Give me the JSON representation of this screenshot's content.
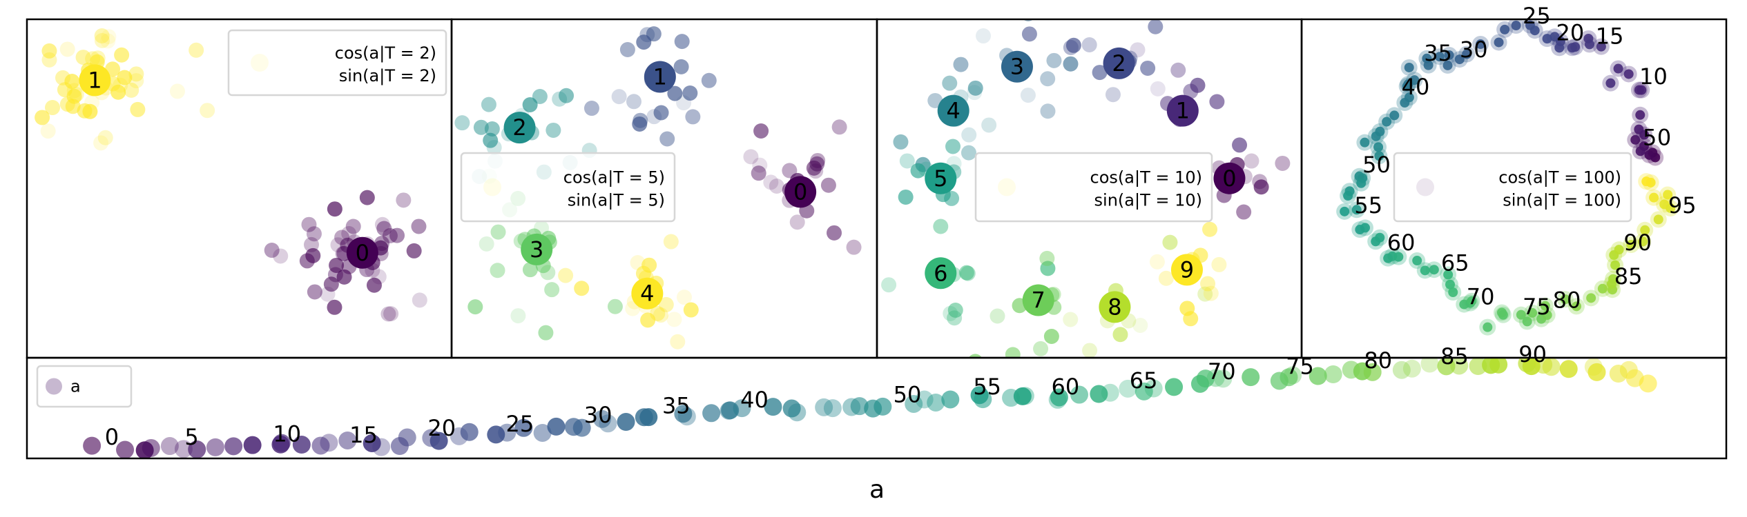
{
  "chart_data": [
    {
      "type": "scatter",
      "panel": "T2",
      "colormap": "viridis",
      "legend": {
        "lines": [
          "cos(a|T = 2)",
          "sin(a|T = 2)"
        ],
        "placement": "upper right"
      },
      "xlim": [
        0,
        100
      ],
      "ylim": [
        0,
        100
      ],
      "clusters": [
        {
          "label": "0",
          "x": 79,
          "y": 31
        },
        {
          "label": "1",
          "x": 16,
          "y": 82
        }
      ]
    },
    {
      "type": "scatter",
      "panel": "T5",
      "colormap": "viridis",
      "legend": {
        "lines": [
          "cos(a|T = 5)",
          "sin(a|T = 5)"
        ],
        "placement": "center left"
      },
      "xlim": [
        0,
        100
      ],
      "ylim": [
        0,
        100
      ],
      "clusters": [
        {
          "label": "0",
          "x": 82,
          "y": 49
        },
        {
          "label": "1",
          "x": 49,
          "y": 83
        },
        {
          "label": "2",
          "x": 16,
          "y": 68
        },
        {
          "label": "3",
          "x": 20,
          "y": 32
        },
        {
          "label": "4",
          "x": 46,
          "y": 19
        }
      ]
    },
    {
      "type": "scatter",
      "panel": "T10",
      "colormap": "viridis",
      "legend": {
        "lines": [
          "cos(a|T = 10)",
          "sin(a|T = 10)"
        ],
        "placement": "center"
      },
      "xlim": [
        0,
        100
      ],
      "ylim": [
        0,
        100
      ],
      "clusters": [
        {
          "label": "0",
          "x": 83,
          "y": 53
        },
        {
          "label": "1",
          "x": 72,
          "y": 73
        },
        {
          "label": "2",
          "x": 57,
          "y": 87
        },
        {
          "label": "3",
          "x": 33,
          "y": 86
        },
        {
          "label": "4",
          "x": 18,
          "y": 73
        },
        {
          "label": "5",
          "x": 15,
          "y": 53
        },
        {
          "label": "6",
          "x": 15,
          "y": 25
        },
        {
          "label": "7",
          "x": 38,
          "y": 17
        },
        {
          "label": "8",
          "x": 56,
          "y": 15
        },
        {
          "label": "9",
          "x": 73,
          "y": 26
        }
      ]
    },
    {
      "type": "scatter",
      "panel": "T100",
      "colormap": "viridis",
      "legend": {
        "lines": [
          "cos(a|T = 100)",
          "sin(a|T = 100)"
        ],
        "placement": "center right"
      },
      "xlim": [
        0,
        100
      ],
      "ylim": [
        0,
        100
      ],
      "anchors": [
        {
          "i": 0,
          "x": 83.4,
          "y": 62,
          "label": "0"
        },
        {
          "i": 5,
          "x": 80,
          "y": 62,
          "label": "5"
        },
        {
          "i": 10,
          "x": 79.2,
          "y": 80,
          "label": "10"
        },
        {
          "i": 15,
          "x": 68.9,
          "y": 92,
          "label": "15"
        },
        {
          "i": 20,
          "x": 59.6,
          "y": 93,
          "label": "20"
        },
        {
          "i": 25,
          "x": 51.7,
          "y": 98,
          "label": "25"
        },
        {
          "i": 30,
          "x": 36.9,
          "y": 88,
          "label": "30"
        },
        {
          "i": 35,
          "x": 28.5,
          "y": 87,
          "label": "35"
        },
        {
          "i": 40,
          "x": 23.2,
          "y": 77,
          "label": "40"
        },
        {
          "i": 45,
          "x": 18.5,
          "y": 66,
          "label": ""
        },
        {
          "i": 50,
          "x": 14,
          "y": 54,
          "label": "50"
        },
        {
          "i": 55,
          "x": 12.1,
          "y": 42,
          "label": "55"
        },
        {
          "i": 60,
          "x": 19.8,
          "y": 31,
          "label": "60"
        },
        {
          "i": 65,
          "x": 32.5,
          "y": 25,
          "label": "65"
        },
        {
          "i": 70,
          "x": 38.5,
          "y": 15,
          "label": "70"
        },
        {
          "i": 75,
          "x": 51.7,
          "y": 12,
          "label": "75"
        },
        {
          "i": 80,
          "x": 58.8,
          "y": 14,
          "label": "80"
        },
        {
          "i": 85,
          "x": 73.3,
          "y": 21,
          "label": "85"
        },
        {
          "i": 90,
          "x": 75.5,
          "y": 31,
          "label": "90"
        },
        {
          "i": 95,
          "x": 86,
          "y": 42,
          "label": "95"
        },
        {
          "i": 100,
          "x": 81,
          "y": 53,
          "label": ""
        }
      ]
    },
    {
      "type": "scatter",
      "panel": "a",
      "colormap": "viridis",
      "xlabel": "a",
      "legend": {
        "lines": [
          "a"
        ],
        "placement": "upper left"
      },
      "xlim": [
        0,
        100
      ],
      "ylim": [
        0,
        100
      ],
      "anchors": [
        {
          "i": 0,
          "x": 4.5,
          "y": 11,
          "label": "0"
        },
        {
          "i": 5,
          "x": 9.2,
          "y": 11,
          "label": "5"
        },
        {
          "i": 10,
          "x": 14.4,
          "y": 14,
          "label": "10"
        },
        {
          "i": 15,
          "x": 18.9,
          "y": 13,
          "label": "15"
        },
        {
          "i": 20,
          "x": 23.5,
          "y": 20,
          "label": "20"
        },
        {
          "i": 25,
          "x": 28.1,
          "y": 24,
          "label": "25"
        },
        {
          "i": 30,
          "x": 32.7,
          "y": 33,
          "label": "30"
        },
        {
          "i": 35,
          "x": 37.3,
          "y": 42,
          "label": "35"
        },
        {
          "i": 40,
          "x": 41.9,
          "y": 48,
          "label": "40"
        },
        {
          "i": 45,
          "x": 46.5,
          "y": 50,
          "label": ""
        },
        {
          "i": 50,
          "x": 50.9,
          "y": 53,
          "label": "50"
        },
        {
          "i": 55,
          "x": 55.6,
          "y": 61,
          "label": "55"
        },
        {
          "i": 60,
          "x": 60.2,
          "y": 61,
          "label": "60"
        },
        {
          "i": 65,
          "x": 64.8,
          "y": 67,
          "label": "65"
        },
        {
          "i": 70,
          "x": 69.4,
          "y": 76,
          "label": "70"
        },
        {
          "i": 75,
          "x": 74.0,
          "y": 81,
          "label": "75"
        },
        {
          "i": 80,
          "x": 78.6,
          "y": 87,
          "label": "80"
        },
        {
          "i": 85,
          "x": 83.1,
          "y": 91,
          "label": "85"
        },
        {
          "i": 90,
          "x": 87.7,
          "y": 93,
          "label": "90"
        },
        {
          "i": 95,
          "x": 92.0,
          "y": 89,
          "label": ""
        },
        {
          "i": 100,
          "x": 95.5,
          "y": 78,
          "label": ""
        }
      ]
    }
  ]
}
